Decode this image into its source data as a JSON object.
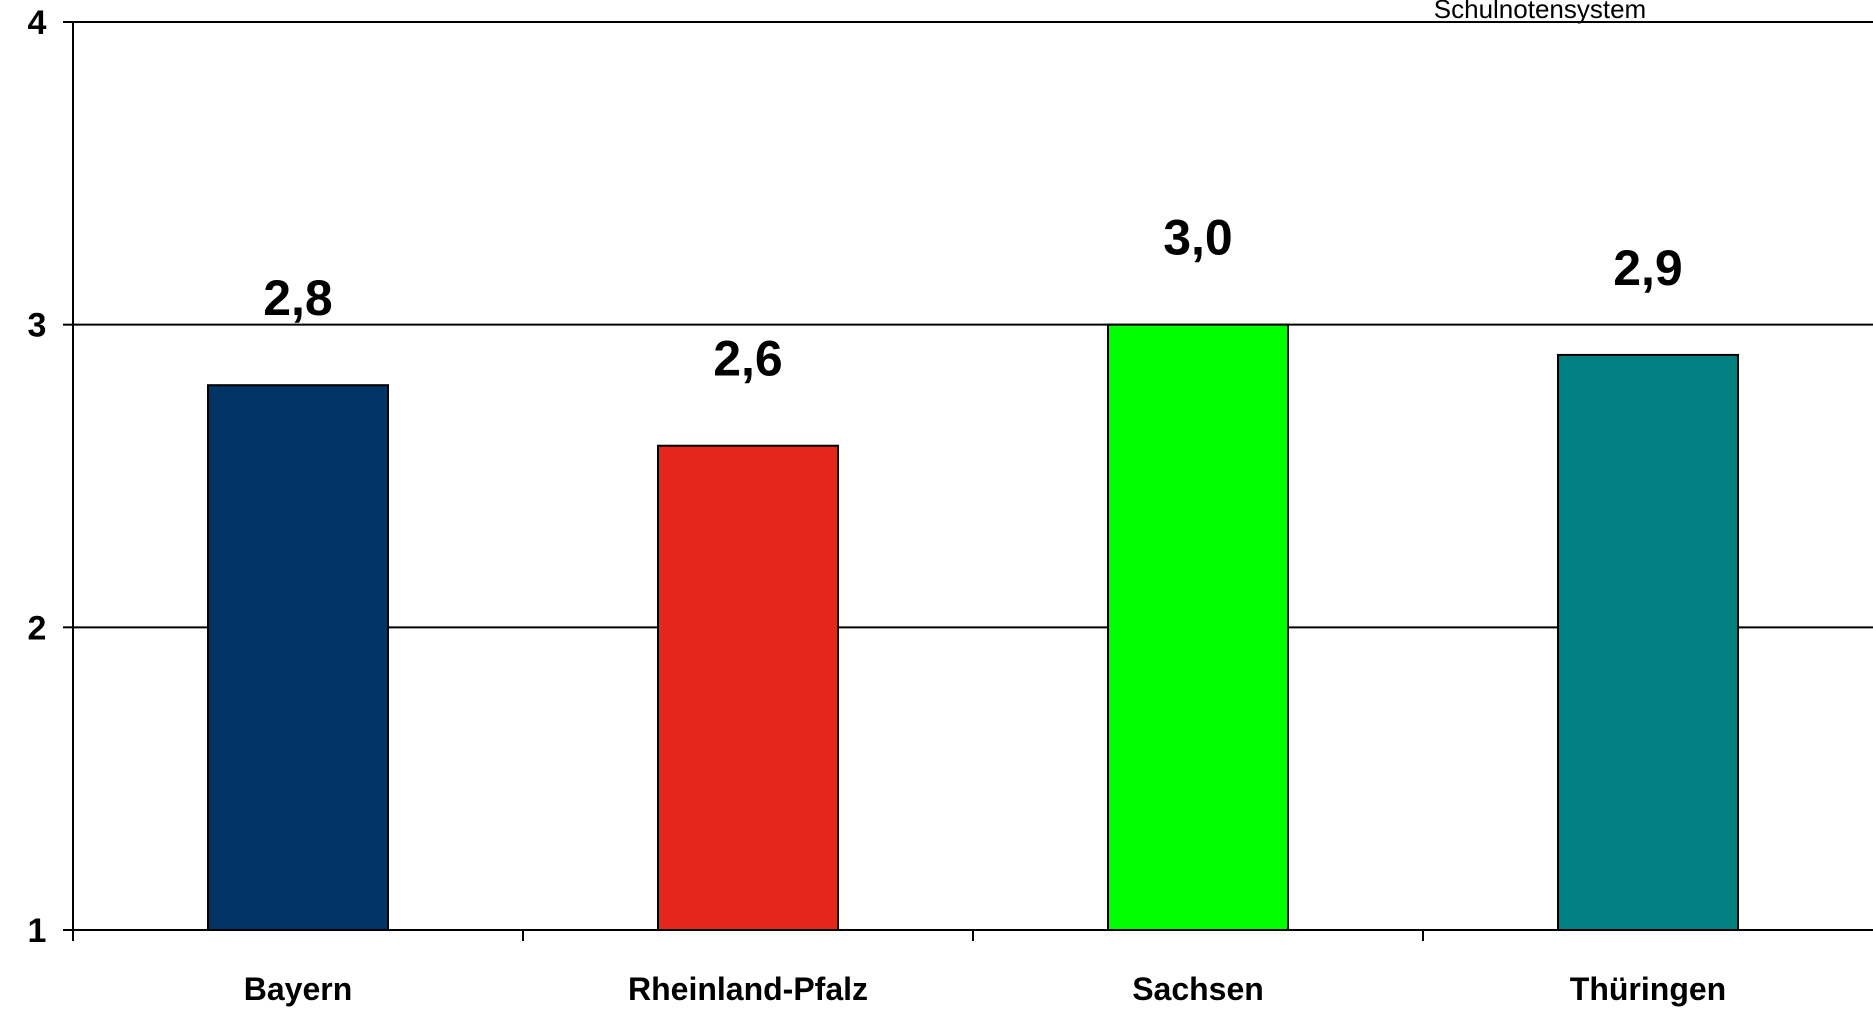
{
  "chart_data": {
    "type": "bar",
    "note": "Schulnotensystem",
    "categories": [
      "Bayern",
      "Rheinland-Pfalz",
      "Sachsen",
      "Thüringen"
    ],
    "values": [
      2.8,
      2.6,
      3.0,
      2.9
    ],
    "value_labels": [
      "2,8",
      "2,6",
      "3,0",
      "2,9"
    ],
    "bar_colors": [
      "#003366",
      "#e5261c",
      "#00ff00",
      "#008080"
    ],
    "ylim": [
      1,
      4
    ],
    "y_ticks": [
      "1",
      "2",
      "3",
      "4"
    ],
    "grid": true
  }
}
